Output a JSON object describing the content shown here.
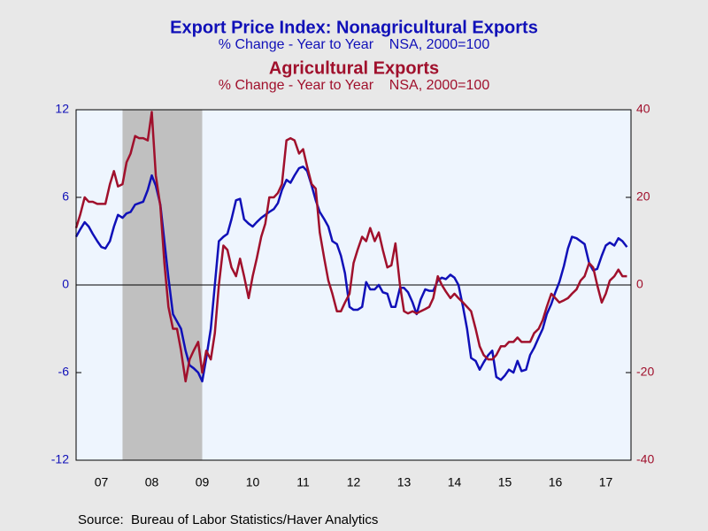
{
  "chart_data": {
    "type": "line",
    "title": "Export Price Index: Nonagricultural Exports",
    "subtitle": "% Change - Year to Year    NSA, 2000=100",
    "title2": "Agricultural Exports",
    "subtitle2": "% Change - Year to Year    NSA, 2000=100",
    "source": "Source:  Bureau of Labor Statistics/Haver Analytics",
    "x": [
      2007.0,
      2007.08,
      2007.17,
      2007.25,
      2007.33,
      2007.42,
      2007.5,
      2007.58,
      2007.67,
      2007.75,
      2007.83,
      2007.92,
      2008.0,
      2008.08,
      2008.17,
      2008.25,
      2008.33,
      2008.42,
      2008.5,
      2008.58,
      2008.67,
      2008.75,
      2008.83,
      2008.92,
      2009.0,
      2009.08,
      2009.17,
      2009.25,
      2009.33,
      2009.42,
      2009.5,
      2009.58,
      2009.67,
      2009.75,
      2009.83,
      2009.92,
      2010.0,
      2010.08,
      2010.17,
      2010.25,
      2010.33,
      2010.42,
      2010.5,
      2010.58,
      2010.67,
      2010.75,
      2010.83,
      2010.92,
      2011.0,
      2011.08,
      2011.17,
      2011.25,
      2011.33,
      2011.42,
      2011.5,
      2011.58,
      2011.67,
      2011.75,
      2011.83,
      2011.92,
      2012.0,
      2012.08,
      2012.17,
      2012.25,
      2012.33,
      2012.42,
      2012.5,
      2012.58,
      2012.67,
      2012.75,
      2012.83,
      2012.92,
      2013.0,
      2013.08,
      2013.17,
      2013.25,
      2013.33,
      2013.42,
      2013.5,
      2013.58,
      2013.67,
      2013.75,
      2013.83,
      2013.92,
      2014.0,
      2014.08,
      2014.17,
      2014.25,
      2014.33,
      2014.42,
      2014.5,
      2014.58,
      2014.67,
      2014.75,
      2014.83,
      2014.92,
      2015.0,
      2015.08,
      2015.17,
      2015.25,
      2015.33,
      2015.42,
      2015.5,
      2015.58,
      2015.67,
      2015.75,
      2015.83,
      2015.92,
      2016.0,
      2016.08,
      2016.17,
      2016.25,
      2016.33,
      2016.42,
      2016.5,
      2016.58,
      2016.67,
      2016.75,
      2016.83,
      2016.92,
      2017.0,
      2017.08,
      2017.17,
      2017.25,
      2017.33,
      2017.42,
      2017.5,
      2017.58,
      2017.67,
      2017.75,
      2017.83,
      2017.92
    ],
    "xlim": [
      2007,
      2018
    ],
    "xticks": [
      {
        "value": 2007.5,
        "label": "07"
      },
      {
        "value": 2008.5,
        "label": "08"
      },
      {
        "value": 2009.5,
        "label": "09"
      },
      {
        "value": 2010.5,
        "label": "10"
      },
      {
        "value": 2011.5,
        "label": "11"
      },
      {
        "value": 2012.5,
        "label": "12"
      },
      {
        "value": 2013.5,
        "label": "13"
      },
      {
        "value": 2014.5,
        "label": "14"
      },
      {
        "value": 2015.5,
        "label": "15"
      },
      {
        "value": 2016.5,
        "label": "16"
      },
      {
        "value": 2017.5,
        "label": "17"
      }
    ],
    "ylim": [
      -12,
      12
    ],
    "yticks": [
      -12,
      -6,
      0,
      6,
      12
    ],
    "y2lim": [
      -40,
      40
    ],
    "y2ticks": [
      -40,
      -20,
      0,
      20,
      40
    ],
    "recessions": [
      [
        2007.92,
        2009.5
      ]
    ],
    "series": [
      {
        "name": "Nonagricultural Exports",
        "color": "#1010b8",
        "axis": "y",
        "values": [
          3.3,
          3.8,
          4.3,
          4.0,
          3.5,
          3.0,
          2.6,
          2.5,
          3.0,
          4.0,
          4.8,
          4.6,
          4.9,
          5.0,
          5.5,
          5.6,
          5.7,
          6.5,
          7.5,
          6.8,
          5.5,
          3.0,
          0.5,
          -2.0,
          -2.5,
          -3.0,
          -4.5,
          -5.5,
          -5.7,
          -6.0,
          -6.6,
          -5.0,
          -3.0,
          0.0,
          3.0,
          3.3,
          3.5,
          4.5,
          5.8,
          5.9,
          4.5,
          4.2,
          4.0,
          4.3,
          4.6,
          4.8,
          5.0,
          5.2,
          5.6,
          6.5,
          7.2,
          7.0,
          7.5,
          8.0,
          8.1,
          7.8,
          6.8,
          5.8,
          5.0,
          4.5,
          4.0,
          3.0,
          2.8,
          2.0,
          0.8,
          -1.5,
          -1.7,
          -1.7,
          -1.5,
          0.2,
          -0.3,
          -0.3,
          0.0,
          -0.5,
          -0.6,
          -1.5,
          -1.5,
          -0.2,
          -0.2,
          -0.5,
          -1.2,
          -2.0,
          -1.0,
          -0.3,
          -0.4,
          -0.4,
          0.3,
          0.5,
          0.4,
          0.7,
          0.5,
          0.0,
          -1.5,
          -3.0,
          -5.0,
          -5.2,
          -5.8,
          -5.3,
          -4.8,
          -4.5,
          -6.3,
          -6.5,
          -6.2,
          -5.8,
          -6.0,
          -5.2,
          -5.9,
          -5.8,
          -4.8,
          -4.3,
          -3.6,
          -3.0,
          -2.0,
          -1.3,
          -0.5,
          0.2,
          1.3,
          2.5,
          3.3,
          3.2,
          3.0,
          2.8,
          1.5,
          1.0,
          1.1,
          2.0,
          2.7,
          2.9,
          2.7,
          3.2,
          3.0,
          2.6
        ]
      },
      {
        "name": "Agricultural Exports",
        "color": "#a0102c",
        "axis": "y2",
        "values": [
          13,
          16,
          20,
          19,
          19,
          18.5,
          18.5,
          18.5,
          23,
          26,
          22.5,
          23,
          28,
          30,
          34,
          33.5,
          33.5,
          33,
          39.5,
          25,
          18,
          5,
          -5,
          -10,
          -10,
          -15,
          -22,
          -17,
          -15,
          -13,
          -20,
          -15,
          -17,
          -11,
          0,
          9,
          8,
          4,
          2,
          6,
          2,
          -3,
          2,
          6,
          11,
          14,
          20,
          20,
          21,
          23,
          33,
          33.5,
          33,
          30,
          31,
          27,
          23,
          22,
          12,
          6,
          1,
          -2,
          -6,
          -6,
          -4,
          -2,
          5,
          8,
          11,
          10,
          13,
          10,
          12,
          8,
          4,
          4.5,
          9.5,
          0,
          -6,
          -6.5,
          -6,
          -6.5,
          -6,
          -5.5,
          -5,
          -3,
          2,
          0,
          -1.5,
          -3,
          -2,
          -3,
          -4,
          -5,
          -6,
          -10,
          -14,
          -16,
          -17,
          -17,
          -16,
          -14,
          -14,
          -13,
          -13,
          -12,
          -13,
          -13,
          -13,
          -11,
          -10,
          -8,
          -5,
          -2,
          -3,
          -4,
          -3.5,
          -3,
          -2,
          -1,
          1,
          2,
          5,
          4,
          0,
          -4,
          -2,
          1,
          2,
          3.5,
          2,
          2
        ]
      }
    ]
  }
}
